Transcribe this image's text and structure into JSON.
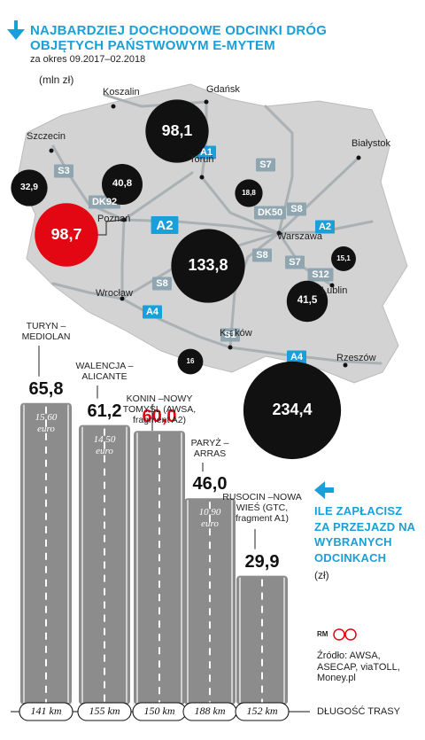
{
  "header": {
    "title_lines": [
      "NAJBARDZIEJ DOCHODOWE ODCINKI DRÓG",
      "OBJĘTYCH PAŃSTWOWYM E-MYTEM"
    ],
    "subtitle": "za okres 09.2017–02.2018",
    "unit": "(mln zł)"
  },
  "chart_data": [
    {
      "type": "bubble",
      "cities": [
        "Gdańsk",
        "Koszalin",
        "Szczecin",
        "Toruń",
        "Białystok",
        "Poznań",
        "Warszawa",
        "Lublin",
        "Wrocław",
        "Kraków",
        "Rzeszów"
      ],
      "badges": [
        {
          "label": "A1",
          "color": "#1a9fd9"
        },
        {
          "label": "S7",
          "color": "#8fa5b0"
        },
        {
          "label": "S3",
          "color": "#8fa5b0"
        },
        {
          "label": "DK92",
          "color": "#8fa5b0"
        },
        {
          "label": "A2",
          "color": "#1a9fd9"
        },
        {
          "label": "DK50",
          "color": "#8fa5b0"
        },
        {
          "label": "S8",
          "color": "#8fa5b0"
        },
        {
          "label": "A2",
          "color": "#1a9fd9"
        },
        {
          "label": "S8",
          "color": "#8fa5b0"
        },
        {
          "label": "S7",
          "color": "#8fa5b0"
        },
        {
          "label": "S12",
          "color": "#8fa5b0"
        },
        {
          "label": "S8",
          "color": "#8fa5b0"
        },
        {
          "label": "A4",
          "color": "#1a9fd9"
        },
        {
          "label": "S1",
          "color": "#8fa5b0"
        },
        {
          "label": "A4",
          "color": "#1a9fd9"
        }
      ],
      "values": [
        98.1,
        32.9,
        40.8,
        98.7,
        18.8,
        133.8,
        15.1,
        41.5,
        16,
        234.4
      ],
      "value_labels": [
        "98,1",
        "32,9",
        "40,8",
        "98,7",
        "18,8",
        "133,8",
        "15,1",
        "41,5",
        "16",
        "234,4"
      ],
      "colors": [
        "#111111",
        "#111111",
        "#111111",
        "#e30613",
        "#111111",
        "#111111",
        "#111111",
        "#111111",
        "#111111",
        "#111111"
      ]
    },
    {
      "type": "bar",
      "title": "ILE ZAPŁACISZ ZA PRZEJAZD NA WYBRANYCH ODCINKACH",
      "unit": "(zł)",
      "categories": [
        "TURYN –MEDIOLAN",
        "WALENCJA –ALICANTE",
        "KONIN –NOWY TOMYŚL (AWSA, fragment A2)",
        "PARYŻ –ARRAS",
        "RUSOCIN –NOWA WIEŚ (GTC, fragment A1)"
      ],
      "values": [
        65.8,
        61.2,
        60.0,
        46.0,
        29.9
      ],
      "value_labels": [
        "65,8",
        "61,2",
        "60,0",
        "46,0",
        "29,9"
      ],
      "colors": [
        "#111111",
        "#111111",
        "#e30613",
        "#111111",
        "#111111"
      ],
      "euro_prices": [
        "15,60",
        "14,50",
        null,
        "10,90",
        null
      ],
      "euro_unit": "euro",
      "lengths": [
        "141 km",
        "155 km",
        "150 km",
        "188 km",
        "152 km"
      ],
      "length_label": "DŁUGOŚĆ TRASY"
    }
  ],
  "footer": {
    "logo": "RM",
    "source": "Źródło: AWSA, ASECAP, viaTOLL, Money.pl"
  }
}
